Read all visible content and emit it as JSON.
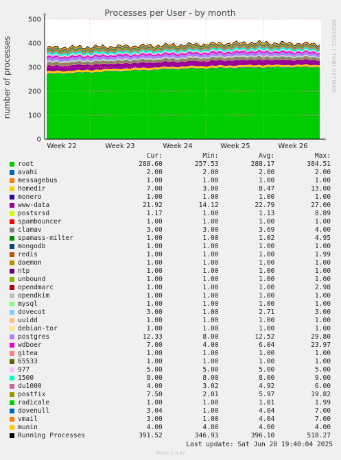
{
  "chart_data": {
    "type": "area",
    "title": "Processes per User - by month",
    "ylabel": "number of processes",
    "ylim": [
      0,
      500
    ],
    "yticks": [
      0,
      100,
      200,
      300,
      400,
      500
    ],
    "xticks": [
      "Week 22",
      "Week 23",
      "Week 24",
      "Week 25",
      "Week 26"
    ],
    "grid": true,
    "side_label": "RRDTOOL / TOBI OETIKER",
    "series_stack_approx": {
      "root_week_levels": [
        270,
        282,
        293,
        298,
        300
      ],
      "total_week_levels": [
        381,
        386,
        393,
        402,
        396
      ]
    },
    "legend_headers": [
      "Cur:",
      "Min:",
      "Avg:",
      "Max:"
    ],
    "legend": [
      {
        "name": "root",
        "color": "#00cc00",
        "cur": "288.60",
        "min": "257.53",
        "avg": "288.17",
        "max": "384.51"
      },
      {
        "name": "avahi",
        "color": "#0066b3",
        "cur": "2.00",
        "min": "2.00",
        "avg": "2.00",
        "max": "2.00"
      },
      {
        "name": "messagebus",
        "color": "#ff8000",
        "cur": "1.00",
        "min": "1.00",
        "avg": "1.00",
        "max": "1.00"
      },
      {
        "name": "homedir",
        "color": "#ffcc00",
        "cur": "7.00",
        "min": "3.00",
        "avg": "8.47",
        "max": "13.00"
      },
      {
        "name": "monero",
        "color": "#330099",
        "cur": "1.00",
        "min": "1.00",
        "avg": "1.00",
        "max": "1.00"
      },
      {
        "name": "www-data",
        "color": "#990099",
        "cur": "21.92",
        "min": "14.12",
        "avg": "22.79",
        "max": "27.00"
      },
      {
        "name": "postsrsd",
        "color": "#ccff00",
        "cur": "1.17",
        "min": "1.00",
        "avg": "1.13",
        "max": "8.89"
      },
      {
        "name": "spambouncer",
        "color": "#ff0000",
        "cur": "1.00",
        "min": "1.00",
        "avg": "1.00",
        "max": "1.00"
      },
      {
        "name": "clamav",
        "color": "#808080",
        "cur": "3.00",
        "min": "3.00",
        "avg": "3.69",
        "max": "4.00"
      },
      {
        "name": "spamass-milter",
        "color": "#008f00",
        "cur": "1.00",
        "min": "1.00",
        "avg": "1.02",
        "max": "4.95"
      },
      {
        "name": "mongodb",
        "color": "#00487d",
        "cur": "1.00",
        "min": "1.00",
        "avg": "1.00",
        "max": "1.00"
      },
      {
        "name": "redis",
        "color": "#b35a00",
        "cur": "1.00",
        "min": "1.00",
        "avg": "1.00",
        "max": "1.99"
      },
      {
        "name": "daemon",
        "color": "#b38f00",
        "cur": "1.00",
        "min": "1.00",
        "avg": "1.00",
        "max": "1.00"
      },
      {
        "name": "ntp",
        "color": "#6b006b",
        "cur": "1.00",
        "min": "1.00",
        "avg": "1.00",
        "max": "1.00"
      },
      {
        "name": "unbound",
        "color": "#8fb300",
        "cur": "1.00",
        "min": "1.00",
        "avg": "1.00",
        "max": "1.00"
      },
      {
        "name": "opendmarc",
        "color": "#b30000",
        "cur": "1.00",
        "min": "1.00",
        "avg": "1.00",
        "max": "2.98"
      },
      {
        "name": "opendkim",
        "color": "#bebebe",
        "cur": "1.00",
        "min": "1.00",
        "avg": "1.00",
        "max": "1.00"
      },
      {
        "name": "mysql",
        "color": "#80ff80",
        "cur": "1.00",
        "min": "1.00",
        "avg": "1.00",
        "max": "1.00"
      },
      {
        "name": "dovecot",
        "color": "#80c9ff",
        "cur": "3.00",
        "min": "1.00",
        "avg": "2.71",
        "max": "3.00"
      },
      {
        "name": "uuidd",
        "color": "#ffc080",
        "cur": "1.00",
        "min": "1.00",
        "avg": "1.00",
        "max": "1.00"
      },
      {
        "name": "debian-tor",
        "color": "#ffe680",
        "cur": "1.00",
        "min": "1.00",
        "avg": "1.00",
        "max": "1.00"
      },
      {
        "name": "postgres",
        "color": "#aa80ff",
        "cur": "12.33",
        "min": "8.00",
        "avg": "12.52",
        "max": "29.80"
      },
      {
        "name": "wdboer",
        "color": "#ee00cc",
        "cur": "7.00",
        "min": "4.00",
        "avg": "6.04",
        "max": "23.97"
      },
      {
        "name": "gitea",
        "color": "#ff8080",
        "cur": "1.00",
        "min": "1.00",
        "avg": "1.00",
        "max": "1.00"
      },
      {
        "name": "65533",
        "color": "#666600",
        "cur": "1.00",
        "min": "1.00",
        "avg": "1.00",
        "max": "1.00"
      },
      {
        "name": "977",
        "color": "#ffbfff",
        "cur": "5.00",
        "min": "5.00",
        "avg": "5.00",
        "max": "5.00"
      },
      {
        "name": "1500",
        "color": "#00ffcc",
        "cur": "8.00",
        "min": "8.00",
        "avg": "8.00",
        "max": "9.00"
      },
      {
        "name": "du1000",
        "color": "#cc6699",
        "cur": "4.00",
        "min": "3.02",
        "avg": "4.92",
        "max": "6.00"
      },
      {
        "name": "postfix",
        "color": "#999900",
        "cur": "7.50",
        "min": "2.01",
        "avg": "5.97",
        "max": "19.82"
      },
      {
        "name": "radicale",
        "color": "#00cc00",
        "cur": "1.00",
        "min": "1.00",
        "avg": "1.01",
        "max": "1.99"
      },
      {
        "name": "dovenull",
        "color": "#0066b3",
        "cur": "3.04",
        "min": "1.00",
        "avg": "4.04",
        "max": "7.00"
      },
      {
        "name": "vmail",
        "color": "#ff8000",
        "cur": "3.00",
        "min": "1.00",
        "avg": "4.04",
        "max": "7.00"
      },
      {
        "name": "munin",
        "color": "#ffcc00",
        "cur": "4.00",
        "min": "4.00",
        "avg": "4.00",
        "max": "4.00"
      },
      {
        "name": "Running Processes",
        "color": "#000000",
        "cur": "391.52",
        "min": "346.93",
        "avg": "396.10",
        "max": "518.27"
      }
    ]
  },
  "footer": {
    "last_update": "Last update: Sat Jun 28 19:40:04 2025",
    "version": "Munin 2.0.67"
  }
}
